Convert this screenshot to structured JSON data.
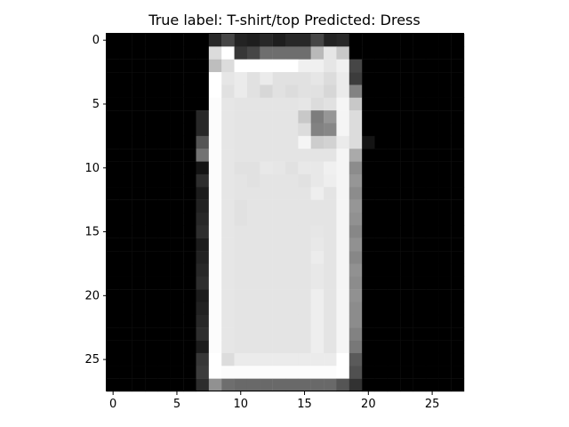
{
  "figure": {
    "title": "True label: T-shirt/top Predicted: Dress",
    "x_ticks": [
      "0",
      "5",
      "10",
      "15",
      "20",
      "25"
    ],
    "y_ticks": [
      "0",
      "5",
      "10",
      "15",
      "20",
      "25"
    ]
  },
  "image": {
    "rows": 28,
    "cols": 28,
    "colormap": "gray",
    "description_omitted": true
  },
  "palette": {
    "background": "#ffffff",
    "axis": "#000000"
  }
}
